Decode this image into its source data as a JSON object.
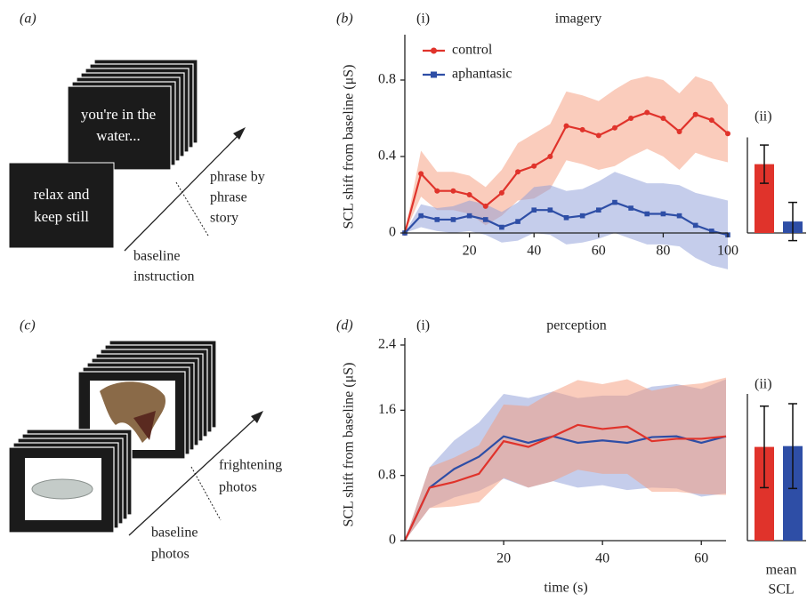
{
  "figure": {
    "panel_a": {
      "label": "(a)",
      "back_card": [
        "you're in the",
        "water..."
      ],
      "front_card": [
        "relax and",
        "keep still"
      ],
      "phase_label": [
        "phrase by",
        "phrase",
        "story"
      ],
      "baseline_label": [
        "baseline",
        "instruction"
      ]
    },
    "panel_c": {
      "label": "(c)",
      "phase_label": [
        "frightening",
        "photos"
      ],
      "baseline_label": [
        "baseline",
        "photos"
      ]
    }
  },
  "chart_data": [
    {
      "type": "line",
      "panel_label": "(b)",
      "subpanel": "(i)",
      "title": "imagery",
      "ylabel": "SCL shift from baseline (μS)",
      "x": [
        0,
        5,
        10,
        15,
        20,
        25,
        30,
        35,
        40,
        45,
        50,
        55,
        60,
        65,
        70,
        75,
        80,
        85,
        90,
        95,
        100
      ],
      "xlim": [
        0,
        100
      ],
      "xticks": [
        20,
        40,
        60,
        80,
        100
      ],
      "ylim": [
        0,
        1.0
      ],
      "yticks": [
        0,
        0.4,
        0.8
      ],
      "legend": "upper left",
      "series": [
        {
          "name": "control",
          "color": "#e0332b",
          "band_color": "#f59a7a",
          "marker": "circle",
          "values": [
            0,
            0.31,
            0.22,
            0.22,
            0.2,
            0.14,
            0.21,
            0.32,
            0.35,
            0.4,
            0.56,
            0.54,
            0.51,
            0.55,
            0.6,
            0.63,
            0.6,
            0.53,
            0.62,
            0.59,
            0.52
          ],
          "errors": [
            0,
            0.12,
            0.1,
            0.1,
            0.1,
            0.1,
            0.12,
            0.15,
            0.17,
            0.17,
            0.18,
            0.18,
            0.18,
            0.2,
            0.2,
            0.19,
            0.2,
            0.2,
            0.2,
            0.2,
            0.15
          ]
        },
        {
          "name": "aphantasic",
          "color": "#2e4ea6",
          "band_color": "#8c9bd8",
          "marker": "square",
          "values": [
            0,
            0.09,
            0.07,
            0.07,
            0.09,
            0.07,
            0.03,
            0.06,
            0.12,
            0.12,
            0.08,
            0.09,
            0.12,
            0.16,
            0.13,
            0.1,
            0.1,
            0.09,
            0.04,
            0.01,
            -0.01
          ],
          "errors": [
            0,
            0.06,
            0.06,
            0.07,
            0.08,
            0.08,
            0.08,
            0.1,
            0.12,
            0.13,
            0.14,
            0.14,
            0.15,
            0.16,
            0.16,
            0.16,
            0.16,
            0.16,
            0.17,
            0.18,
            0.18
          ]
        }
      ]
    },
    {
      "type": "bar",
      "subpanel": "(ii)",
      "ylim": [
        0,
        0.5
      ],
      "values": [
        0.36,
        0.06
      ],
      "errors": [
        0.1,
        0.1
      ],
      "colors": [
        "#e0332b",
        "#2e4ea6"
      ]
    },
    {
      "type": "line",
      "panel_label": "(d)",
      "subpanel": "(i)",
      "title": "perception",
      "ylabel": "SCL shift from baseline (μS)",
      "xlabel": "time (s)",
      "x": [
        0,
        5,
        10,
        15,
        20,
        25,
        30,
        35,
        40,
        45,
        50,
        55,
        60,
        65
      ],
      "xlim": [
        0,
        65
      ],
      "xticks": [
        20,
        40,
        60
      ],
      "ylim": [
        0,
        2.4
      ],
      "yticks": [
        0,
        0.8,
        1.6,
        2.4
      ],
      "series": [
        {
          "color": "#2e4ea6",
          "band_color": "#8c9bd8",
          "values": [
            0,
            0.65,
            0.88,
            1.03,
            1.28,
            1.2,
            1.28,
            1.2,
            1.23,
            1.2,
            1.27,
            1.28,
            1.2,
            1.28
          ],
          "errors": [
            0,
            0.25,
            0.35,
            0.42,
            0.52,
            0.55,
            0.55,
            0.55,
            0.55,
            0.58,
            0.62,
            0.64,
            0.66,
            0.7
          ]
        },
        {
          "color": "#e0332b",
          "band_color": "#f59a7a",
          "values": [
            0,
            0.65,
            0.72,
            0.82,
            1.22,
            1.15,
            1.28,
            1.42,
            1.37,
            1.4,
            1.22,
            1.25,
            1.25,
            1.28
          ],
          "errors": [
            0,
            0.25,
            0.3,
            0.35,
            0.45,
            0.5,
            0.55,
            0.55,
            0.55,
            0.58,
            0.62,
            0.65,
            0.68,
            0.72
          ]
        }
      ]
    },
    {
      "type": "bar",
      "subpanel": "(ii)",
      "xlabel": [
        "mean",
        "SCL"
      ],
      "ylim": [
        0,
        1.8
      ],
      "values": [
        1.15,
        1.16
      ],
      "errors": [
        0.5,
        0.52
      ],
      "colors": [
        "#e0332b",
        "#2e4ea6"
      ]
    }
  ]
}
